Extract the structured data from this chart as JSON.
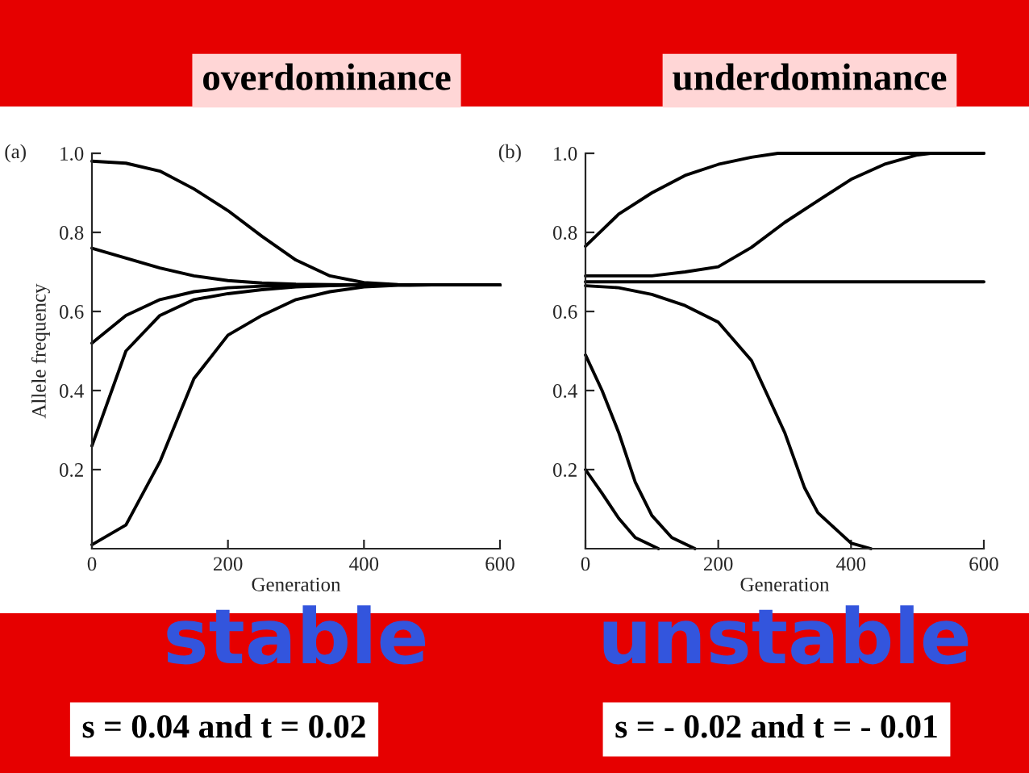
{
  "chart_data": [
    {
      "type": "line",
      "title": "overdominance",
      "xlabel": "Generation",
      "ylabel": "Allele frequency",
      "annotations": [
        "(a)",
        "stable",
        "s = 0.04 and t = 0.02"
      ],
      "x": [
        0,
        50,
        100,
        150,
        200,
        250,
        300,
        350,
        400,
        450,
        500,
        600
      ],
      "xlim": [
        0,
        600
      ],
      "ylim": [
        0,
        1.0
      ],
      "xticks": [
        0,
        200,
        400,
        600
      ],
      "yticks": [
        0.2,
        0.4,
        0.6,
        0.8,
        {
          "value": 1,
          "label": "1.0"
        }
      ],
      "series": [
        {
          "color": "#000000",
          "values": [
            0.98,
            0.975,
            0.955,
            0.91,
            0.855,
            0.79,
            0.73,
            0.69,
            0.673,
            0.668,
            0.667,
            0.667
          ]
        },
        {
          "color": "#000000",
          "values": [
            0.76,
            0.735,
            0.71,
            0.69,
            0.678,
            0.672,
            0.669,
            0.668,
            0.667,
            0.667,
            0.667,
            0.667
          ]
        },
        {
          "color": "#000000",
          "values": [
            0.52,
            0.59,
            0.63,
            0.65,
            0.66,
            0.664,
            0.666,
            0.667,
            0.667,
            0.667,
            0.667,
            0.667
          ]
        },
        {
          "color": "#000000",
          "values": [
            0.26,
            0.5,
            0.59,
            0.63,
            0.645,
            0.655,
            0.662,
            0.665,
            0.667,
            0.667,
            0.667,
            0.667
          ]
        },
        {
          "color": "#000000",
          "values": [
            0.01,
            0.06,
            0.22,
            0.43,
            0.54,
            0.59,
            0.63,
            0.65,
            0.662,
            0.666,
            0.667,
            0.667
          ]
        }
      ]
    },
    {
      "type": "line",
      "title": "underdominance",
      "xlabel": "Generation",
      "annotations": [
        "(b)",
        "unstable",
        "s = - 0.02 and t = - 0.01"
      ],
      "xlim": [
        0,
        600
      ],
      "ylim": [
        0,
        1.0
      ],
      "xticks": [
        0,
        200,
        400,
        600
      ],
      "yticks": [
        0.2,
        0.4,
        0.6,
        0.8,
        {
          "value": 1,
          "label": "1.0"
        }
      ],
      "series": [
        {
          "color": "#000000",
          "x": [
            0,
            50,
            100,
            150,
            200,
            250,
            290,
            600
          ],
          "values": [
            0.765,
            0.846,
            0.9,
            0.944,
            0.972,
            0.99,
            1.0,
            1.0
          ]
        },
        {
          "color": "#000000",
          "x": [
            0,
            100,
            150,
            200,
            250,
            300,
            350,
            400,
            450,
            500,
            520,
            600
          ],
          "values": [
            0.69,
            0.69,
            0.7,
            0.713,
            0.762,
            0.825,
            0.88,
            0.934,
            0.972,
            0.996,
            1.0,
            1.0
          ]
        },
        {
          "color": "#000000",
          "x": [
            0,
            600
          ],
          "values": [
            0.675,
            0.675
          ]
        },
        {
          "color": "#000000",
          "x": [
            0,
            50,
            100,
            150,
            200,
            250,
            300,
            330,
            350,
            400,
            430
          ],
          "values": [
            0.665,
            0.66,
            0.643,
            0.615,
            0.573,
            0.476,
            0.294,
            0.154,
            0.091,
            0.014,
            0.0
          ]
        },
        {
          "color": "#000000",
          "x": [
            0,
            25,
            50,
            75,
            100,
            130,
            165
          ],
          "values": [
            0.49,
            0.4,
            0.294,
            0.168,
            0.084,
            0.028,
            0.0
          ]
        },
        {
          "color": "#000000",
          "x": [
            0,
            25,
            50,
            75,
            110
          ],
          "values": [
            0.2,
            0.14,
            0.077,
            0.028,
            0.0
          ]
        }
      ]
    }
  ]
}
